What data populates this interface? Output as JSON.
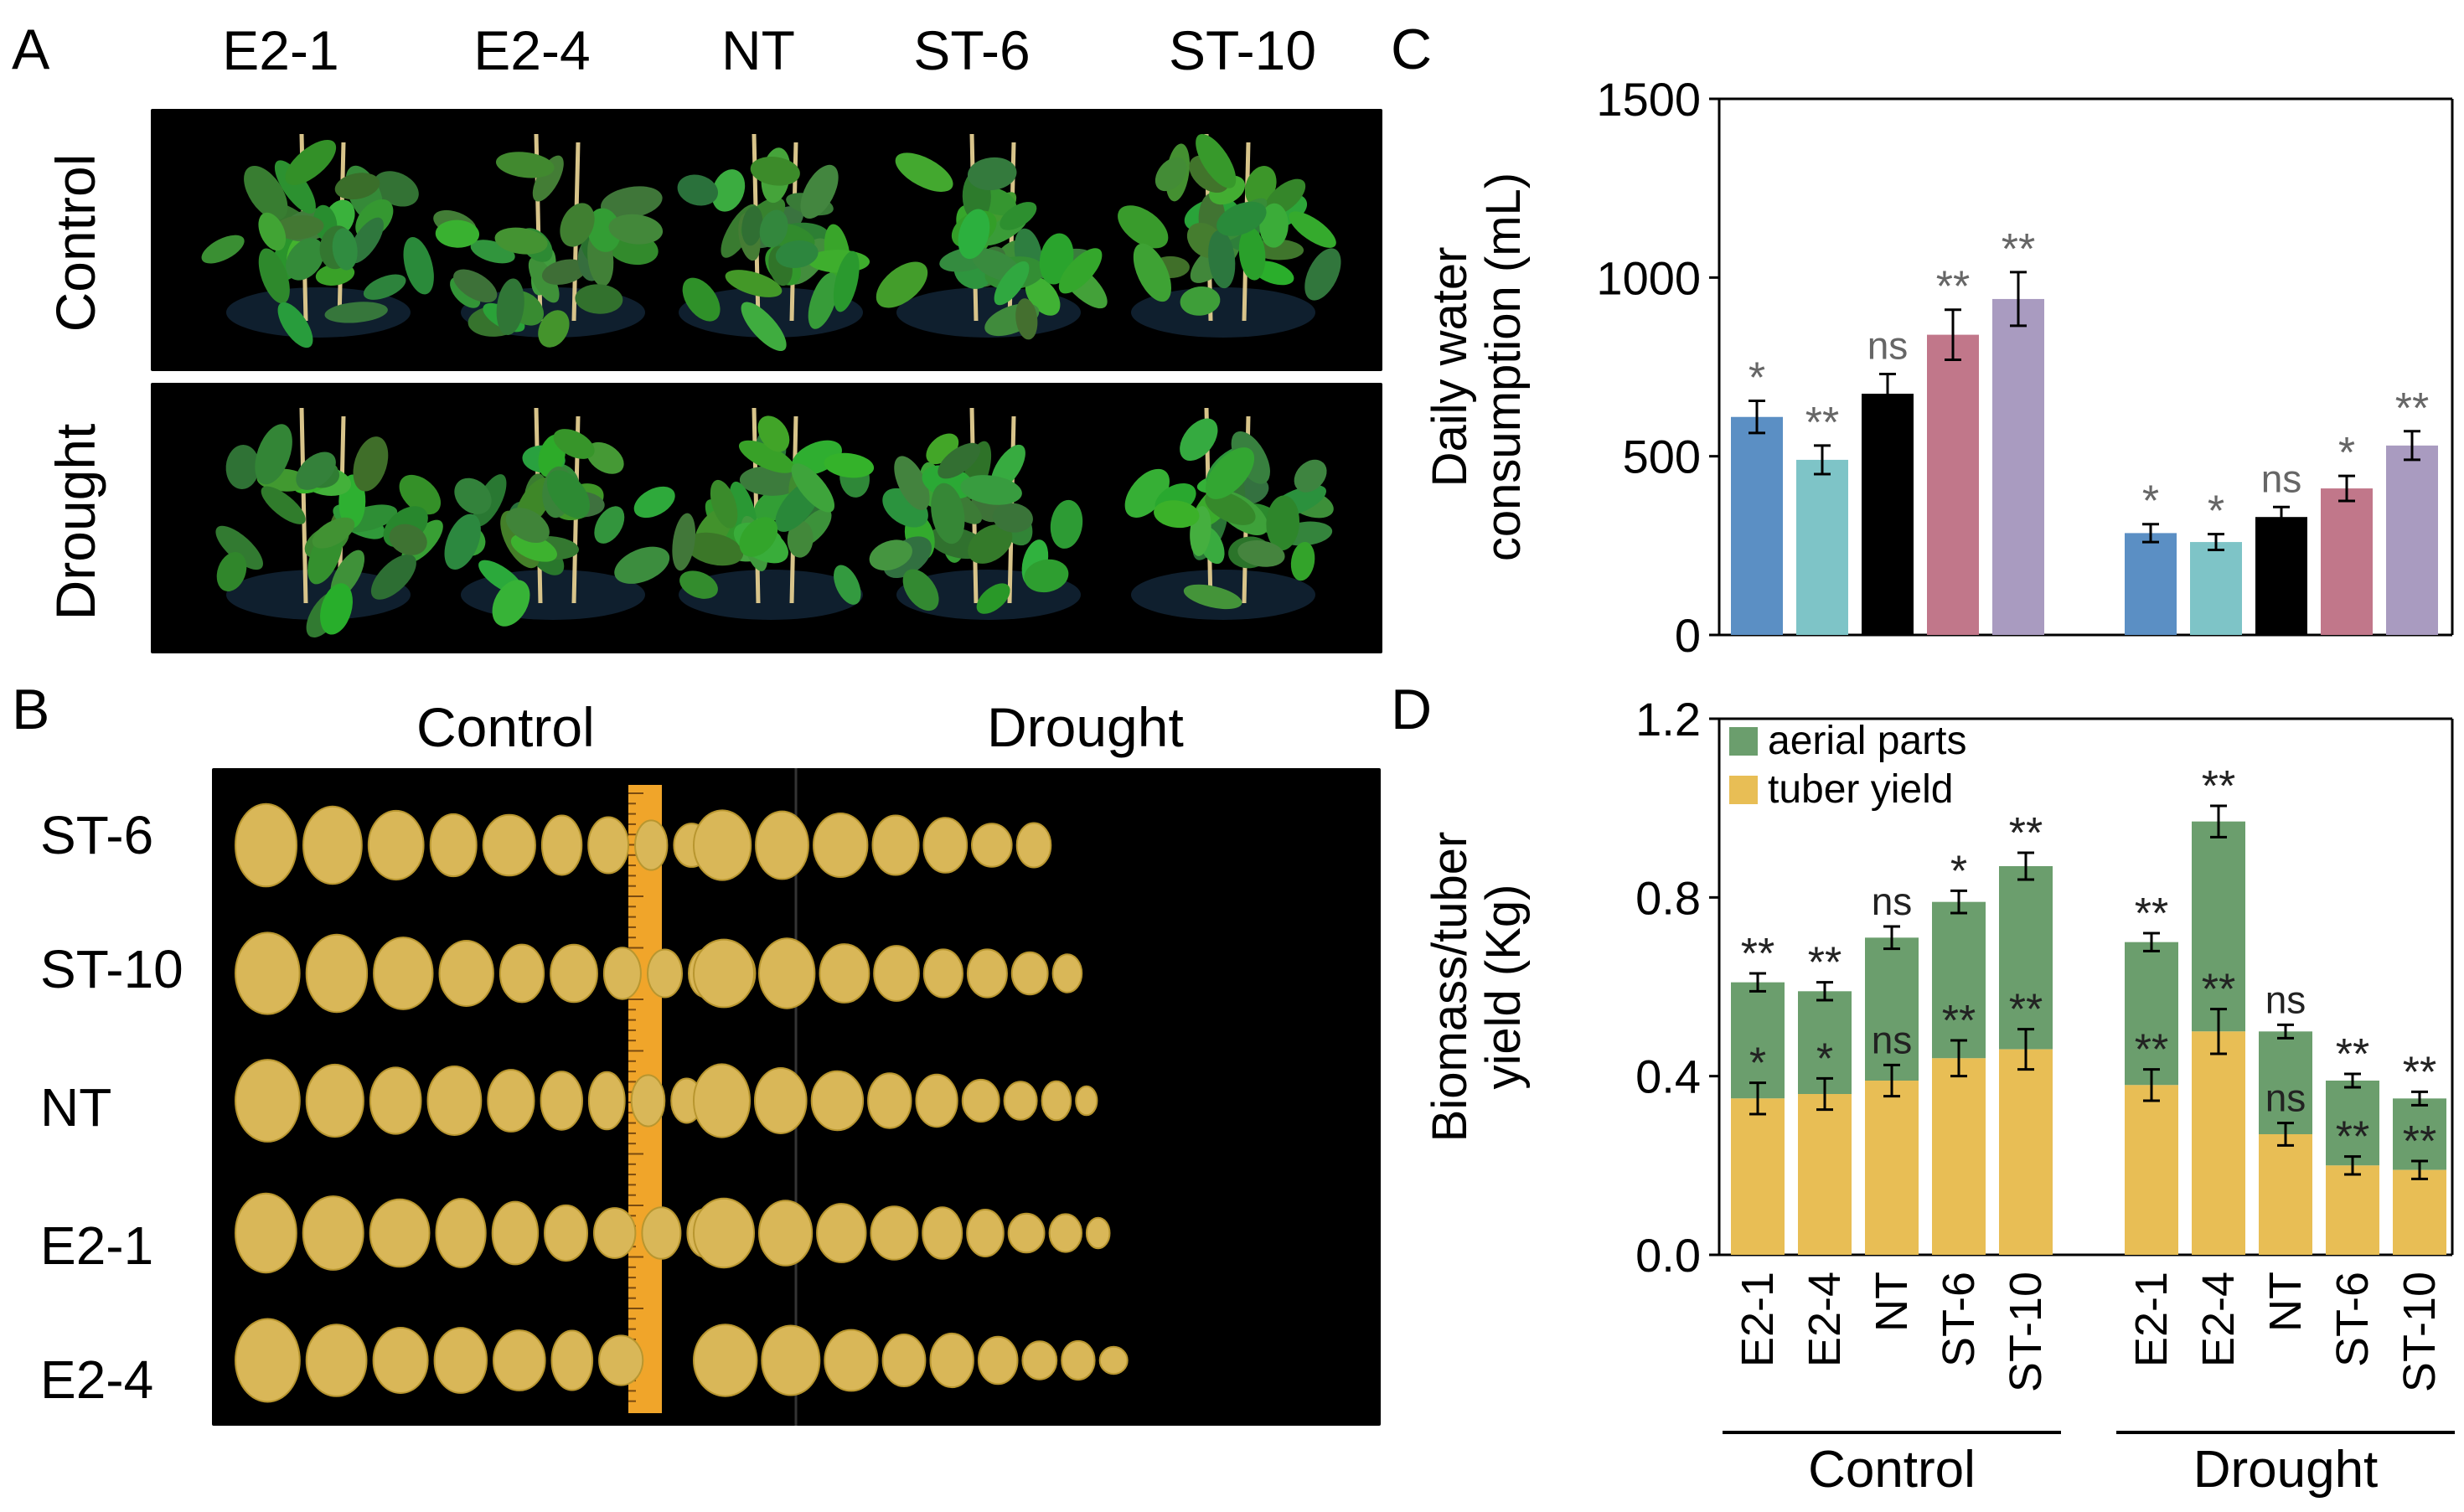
{
  "panelA": {
    "letter": "A",
    "columns": [
      "E2-1",
      "E2-4",
      "NT",
      "ST-6",
      "ST-10"
    ],
    "rows": [
      "Control",
      "Drought"
    ]
  },
  "panelB": {
    "letter": "B",
    "conditions": [
      "Control",
      "Drought"
    ],
    "rows": [
      "ST-6",
      "ST-10",
      "NT",
      "E2-1",
      "E2-4"
    ]
  },
  "panelC": {
    "letter": "C"
  },
  "panelD": {
    "letter": "D"
  },
  "colors": {
    "E2-1": "#5b8fc4",
    "E2-4": "#7ec4c7",
    "NT": "#000000",
    "ST-6": "#c1778a",
    "ST-10": "#a99bc0",
    "aerial": "#6b9e6d",
    "tuber": "#e8be55",
    "leaf": "#3f7d3a",
    "tuberSkin": "#d9b758"
  },
  "chart_data": [
    {
      "id": "C",
      "type": "bar",
      "title": "",
      "ylabel": "Daily water consumption (mL)",
      "ylabel_lines": [
        "Daily water",
        "consumption (mL)"
      ],
      "ylim": [
        0,
        1500
      ],
      "yticks": [
        "0",
        "500",
        "1000",
        "1500"
      ],
      "groups": [
        "Control",
        "Drought"
      ],
      "categories": [
        "E2-1",
        "E2-4",
        "NT",
        "ST-6",
        "ST-10"
      ],
      "series": [
        {
          "name": "Control",
          "values": [
            610,
            490,
            675,
            840,
            940
          ],
          "errors": [
            45,
            40,
            55,
            70,
            75
          ],
          "sig": [
            "*",
            "**",
            "ns",
            "**",
            "**"
          ]
        },
        {
          "name": "Drought",
          "values": [
            285,
            260,
            330,
            410,
            530
          ],
          "errors": [
            25,
            22,
            28,
            35,
            40
          ],
          "sig": [
            "*",
            "*",
            "ns",
            "*",
            "**"
          ]
        }
      ]
    },
    {
      "id": "D",
      "type": "bar",
      "stacked": true,
      "title": "",
      "ylabel": "Biomass/tuber yield (Kg)",
      "ylabel_lines": [
        "Biomass/tuber",
        "yield (Kg)"
      ],
      "ylim": [
        0,
        1.2
      ],
      "yticks": [
        "0.0",
        "0.4",
        "0.8",
        "1.2"
      ],
      "legend": [
        "aerial parts",
        "tuber yield"
      ],
      "legend_position": "top-left",
      "groups": [
        "Control",
        "Drought"
      ],
      "categories": [
        "E2-1",
        "E2-4",
        "NT",
        "ST-6",
        "ST-10"
      ],
      "series": [
        {
          "name": "Control",
          "tuber": [
            0.35,
            0.36,
            0.39,
            0.44,
            0.46
          ],
          "tuber_err": [
            0.035,
            0.035,
            0.035,
            0.04,
            0.045
          ],
          "tuber_sig": [
            "*",
            "*",
            "ns",
            "**",
            "**"
          ],
          "total": [
            0.61,
            0.59,
            0.71,
            0.79,
            0.87
          ],
          "total_err": [
            0.02,
            0.02,
            0.025,
            0.025,
            0.03
          ],
          "total_sig": [
            "**",
            "**",
            "ns",
            "*",
            "**"
          ]
        },
        {
          "name": "Drought",
          "tuber": [
            0.38,
            0.5,
            0.27,
            0.2,
            0.19
          ],
          "tuber_err": [
            0.035,
            0.05,
            0.025,
            0.02,
            0.02
          ],
          "tuber_sig": [
            "**",
            "**",
            "ns",
            "**",
            "**"
          ],
          "total": [
            0.7,
            0.97,
            0.5,
            0.39,
            0.35
          ],
          "total_err": [
            0.02,
            0.035,
            0.015,
            0.015,
            0.015
          ],
          "total_sig": [
            "**",
            "**",
            "ns",
            "**",
            "**"
          ]
        }
      ]
    }
  ]
}
